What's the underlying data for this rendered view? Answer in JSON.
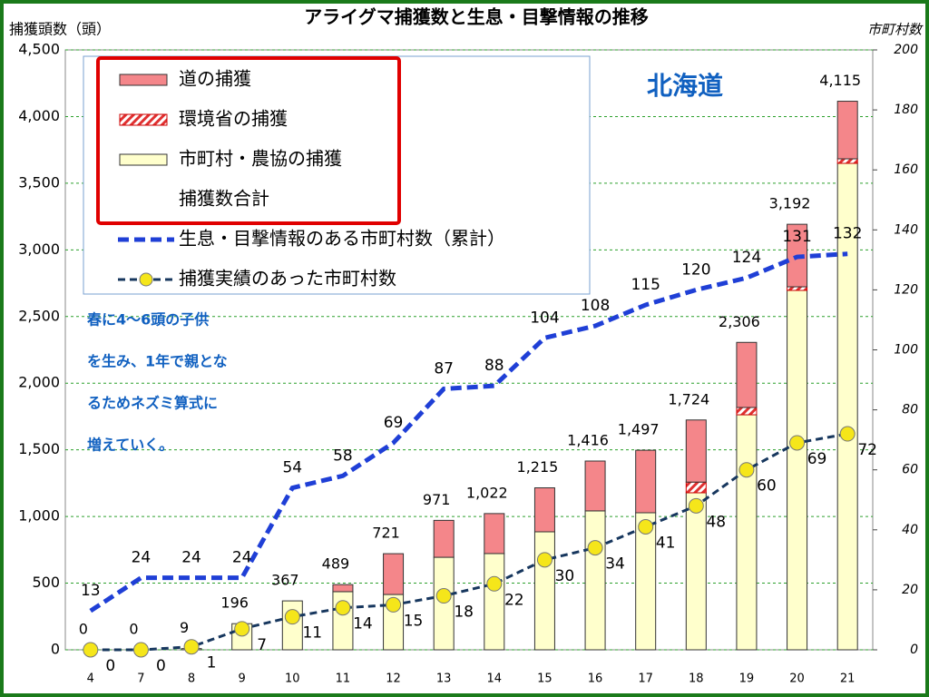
{
  "chart_data": {
    "type": "bar",
    "title": "アライグマ捕獲数と生息・目撃情報の推移",
    "y_label": "捕獲頭数（頭）",
    "y2_label": "市町村数",
    "categories": [
      "4",
      "7",
      "8",
      "9",
      "10",
      "11",
      "12",
      "13",
      "14",
      "15",
      "16",
      "17",
      "18",
      "19",
      "20",
      "21"
    ],
    "series": [
      {
        "name": "道の捕獲",
        "type": "bar",
        "color": "#f4868a",
        "values": [
          0,
          0,
          0,
          0,
          0,
          53,
          306,
          277,
          300,
          330,
          374,
          469,
          466,
          488,
          469,
          432
        ]
      },
      {
        "name": "環境省の捕獲",
        "type": "bar",
        "color": "#e03030",
        "hatch": true,
        "values": [
          0,
          0,
          0,
          0,
          0,
          0,
          0,
          0,
          0,
          0,
          0,
          0,
          80,
          55,
          27,
          34
        ]
      },
      {
        "name": "市町村・農協の捕獲",
        "type": "bar",
        "color": "#ffffcc",
        "values": [
          0,
          0,
          9,
          196,
          367,
          436,
          415,
          694,
          722,
          885,
          1042,
          1028,
          1178,
          1763,
          2696,
          3649
        ]
      },
      {
        "name": "捕獲数合計",
        "type": "total",
        "values": [
          0,
          0,
          9,
          196,
          367,
          489,
          721,
          971,
          1022,
          1215,
          1416,
          1497,
          1724,
          2306,
          3192,
          4115
        ],
        "value_labels": [
          "0",
          "0",
          "9",
          "196",
          "367",
          "489",
          "721",
          "971",
          "1,022",
          "1,215",
          "1,416",
          "1,497",
          "1,724",
          "2,306",
          "3,192",
          "4,115"
        ]
      },
      {
        "name": "生息・目撃情報のある市町村数（累計）",
        "type": "line",
        "axis": "y2",
        "color": "#1f3fd6",
        "values": [
          13,
          24,
          24,
          24,
          54,
          58,
          69,
          87,
          88,
          104,
          108,
          115,
          120,
          124,
          131,
          132
        ]
      },
      {
        "name": "捕獲実績のあった市町村数",
        "type": "line",
        "axis": "y2",
        "color": "#17375e",
        "marker_color": "#f5e61a",
        "values": [
          0,
          0,
          1,
          7,
          11,
          14,
          15,
          18,
          22,
          30,
          34,
          41,
          48,
          60,
          69,
          72
        ]
      }
    ],
    "ylim": [
      0,
      4500
    ],
    "yticks": [
      0,
      500,
      {
        "value": 1000,
        "label": "1,000"
      },
      {
        "value": 1500,
        "label": "1,500"
      },
      {
        "value": 2000,
        "label": "2,000"
      },
      {
        "value": 2500,
        "label": "2,500"
      },
      {
        "value": 3000,
        "label": "3,000"
      },
      {
        "value": 3500,
        "label": "3,500"
      },
      {
        "value": 4000,
        "label": "4,000"
      },
      {
        "value": 4500,
        "label": "4,500"
      }
    ],
    "y2lim": [
      0,
      200
    ],
    "y2ticks": [
      0,
      20,
      40,
      60,
      80,
      100,
      120,
      140,
      160,
      180,
      200
    ],
    "grid": true,
    "legend": "upper left",
    "annotations": [
      "北海道",
      "春に4～6頭の子供",
      "を生み、1年で親とな",
      "るためネズミ算式に",
      "増えていく。"
    ]
  }
}
